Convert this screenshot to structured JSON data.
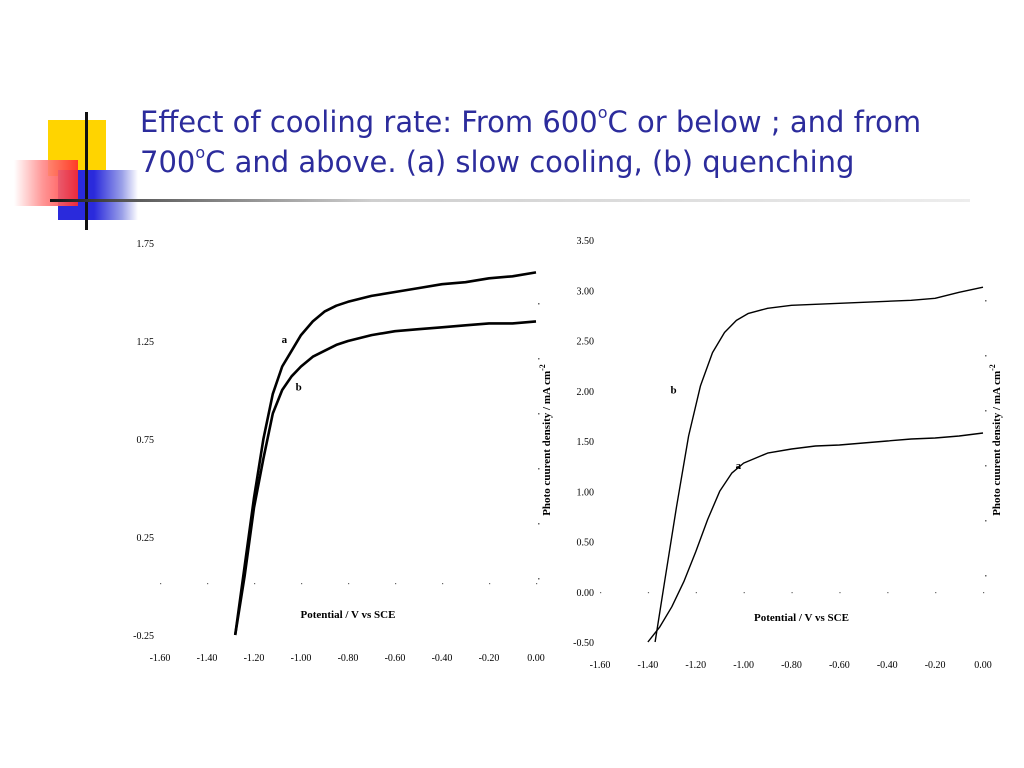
{
  "slide": {
    "title_part1": "Effect of cooling rate: From 600",
    "title_sup1": "o",
    "title_part2": "C or below ; and from",
    "title_part3": "700",
    "title_sup2": "o",
    "title_part4": "C and above. (a) slow cooling, (b) quenching"
  },
  "chart_data": [
    {
      "type": "line",
      "xlabel": "Potential / V vs SCE",
      "ylabel": "Photo cuurent density / mA cm",
      "ylabel_sup": "-2",
      "xticks": [
        "-1.60",
        "-1.40",
        "-1.20",
        "-1.00",
        "-0.80",
        "-0.60",
        "-0.40",
        "-0.20",
        "0.00"
      ],
      "yticks": [
        "1.75",
        "1.25",
        "0.75",
        "0.25",
        "-0.25"
      ],
      "xlim": [
        -1.6,
        0.0
      ],
      "ylim": [
        -0.25,
        1.75
      ],
      "series": [
        {
          "name": "a",
          "x": [
            -1.28,
            -1.24,
            -1.2,
            -1.16,
            -1.12,
            -1.08,
            -1.04,
            -1.0,
            -0.95,
            -0.9,
            -0.85,
            -0.8,
            -0.7,
            -0.6,
            -0.5,
            -0.4,
            -0.3,
            -0.2,
            -0.1,
            0.0
          ],
          "y": [
            -0.25,
            0.1,
            0.45,
            0.75,
            0.98,
            1.12,
            1.2,
            1.28,
            1.35,
            1.4,
            1.43,
            1.45,
            1.48,
            1.5,
            1.52,
            1.54,
            1.55,
            1.57,
            1.58,
            1.6
          ]
        },
        {
          "name": "b",
          "x": [
            -1.28,
            -1.24,
            -1.2,
            -1.16,
            -1.12,
            -1.08,
            -1.04,
            -1.0,
            -0.95,
            -0.9,
            -0.85,
            -0.8,
            -0.7,
            -0.6,
            -0.5,
            -0.4,
            -0.3,
            -0.2,
            -0.1,
            0.0
          ],
          "y": [
            -0.25,
            0.05,
            0.4,
            0.65,
            0.88,
            1.0,
            1.07,
            1.12,
            1.17,
            1.2,
            1.23,
            1.25,
            1.28,
            1.3,
            1.31,
            1.32,
            1.33,
            1.34,
            1.34,
            1.35
          ]
        }
      ]
    },
    {
      "type": "line",
      "xlabel": "Potential / V vs SCE",
      "ylabel": "Photo cuurent density / mA cm",
      "ylabel_sup": "-2",
      "xticks": [
        "-1.60",
        "-1.40",
        "-1.20",
        "-1.00",
        "-0.80",
        "-0.60",
        "-0.40",
        "-0.20",
        "0.00"
      ],
      "yticks": [
        "3.50",
        "3.00",
        "2.50",
        "2.00",
        "1.50",
        "1.00",
        "0.50",
        "0.00",
        "-0.50"
      ],
      "xlim": [
        -1.6,
        0.0
      ],
      "ylim": [
        -0.5,
        3.5
      ],
      "series": [
        {
          "name": "a",
          "x": [
            -1.4,
            -1.35,
            -1.3,
            -1.25,
            -1.2,
            -1.15,
            -1.1,
            -1.05,
            -1.0,
            -0.9,
            -0.8,
            -0.7,
            -0.6,
            -0.5,
            -0.4,
            -0.3,
            -0.2,
            -0.1,
            0.0
          ],
          "y": [
            -0.5,
            -0.35,
            -0.15,
            0.1,
            0.4,
            0.72,
            1.0,
            1.18,
            1.28,
            1.38,
            1.42,
            1.45,
            1.46,
            1.48,
            1.5,
            1.52,
            1.53,
            1.55,
            1.58
          ]
        },
        {
          "name": "b",
          "x": [
            -1.37,
            -1.33,
            -1.28,
            -1.23,
            -1.18,
            -1.13,
            -1.08,
            -1.03,
            -0.98,
            -0.9,
            -0.8,
            -0.7,
            -0.6,
            -0.5,
            -0.4,
            -0.3,
            -0.2,
            -0.1,
            0.0
          ],
          "y": [
            -0.5,
            0.1,
            0.85,
            1.55,
            2.05,
            2.38,
            2.58,
            2.7,
            2.77,
            2.82,
            2.85,
            2.86,
            2.87,
            2.88,
            2.89,
            2.9,
            2.92,
            2.98,
            3.03
          ]
        }
      ]
    }
  ]
}
